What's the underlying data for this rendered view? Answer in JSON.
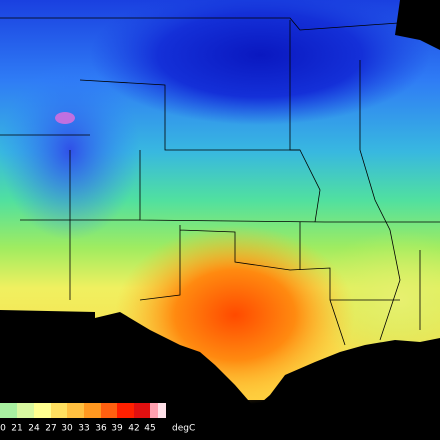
{
  "map": {
    "colorbar": {
      "labels": [
        "0",
        "21",
        "24",
        "27",
        "30",
        "33",
        "36",
        "39",
        "42",
        "45"
      ],
      "unit": "degC"
    }
  }
}
